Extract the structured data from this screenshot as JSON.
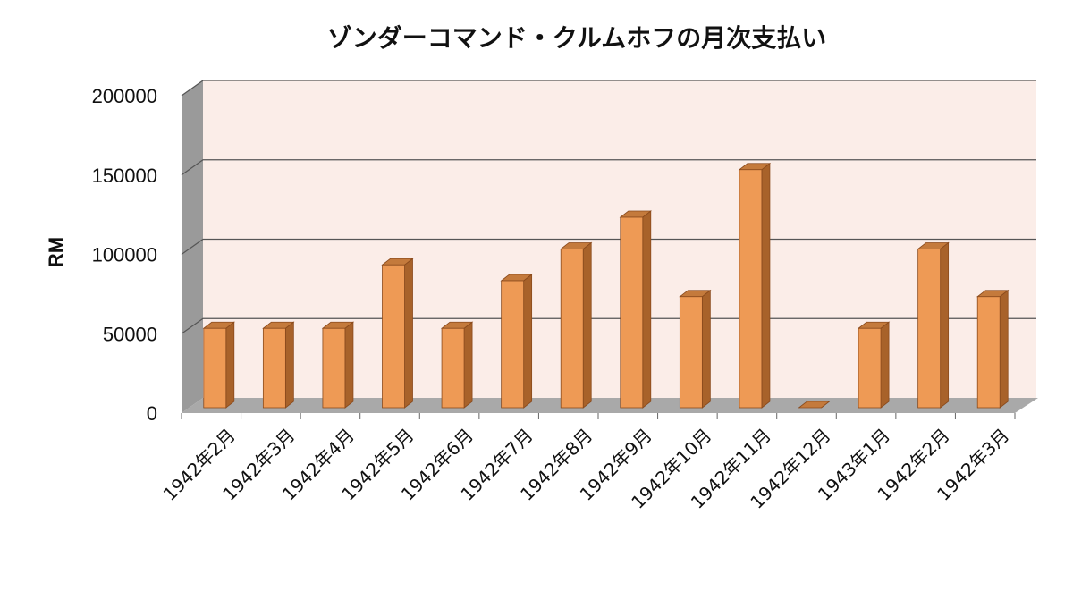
{
  "chart_data": {
    "type": "bar",
    "style": "3d-column",
    "title": "ゾンダーコマンド・クルムホフの月次支払い",
    "xlabel": "",
    "ylabel": "RM",
    "ylim": [
      0,
      200000
    ],
    "yticks": [
      "0",
      "50000",
      "100000",
      "150000",
      "200000"
    ],
    "grid": true,
    "legend": "none",
    "categories": [
      "1942年2月",
      "1942年3月",
      "1942年4月",
      "1942年5月",
      "1942年6月",
      "1942年7月",
      "1942年8月",
      "1942年9月",
      "1942年10月",
      "1942年11月",
      "1942年12月",
      "1943年1月",
      "1942年2月",
      "1942年3月"
    ],
    "values": [
      50000,
      50000,
      50000,
      90000,
      50000,
      80000,
      100000,
      120000,
      70000,
      150000,
      0,
      50000,
      100000,
      70000
    ],
    "colors": {
      "bar_front": "#EE9A55",
      "bar_side": "#A8622A",
      "bar_top": "#C47A3C",
      "bar_outline": "#8A4A1C",
      "plot_background": "#FBEDE8",
      "back_wall_side": "#9A9A9A",
      "floor": "#A9A9A9",
      "gridline": "#555555"
    }
  }
}
